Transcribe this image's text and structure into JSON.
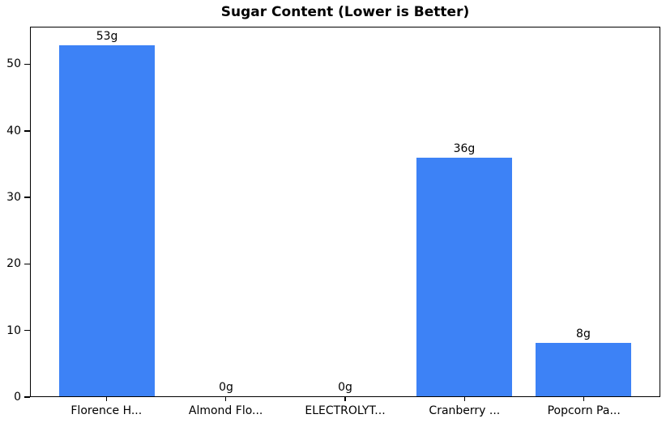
{
  "chart_data": {
    "type": "bar",
    "title": "Sugar Content (Lower is Better)",
    "categories": [
      "Florence H...",
      "Almond Flo...",
      "ELECTROLYT...",
      "Cranberry ...",
      "Popcorn Pa..."
    ],
    "values": [
      53,
      0,
      0,
      36,
      8
    ],
    "bar_labels": [
      "53g",
      "0g",
      "0g",
      "36g",
      "8g"
    ],
    "yticks": [
      0,
      10,
      20,
      30,
      40,
      50
    ],
    "ylim": [
      0,
      55.65
    ],
    "xlim": [
      -0.64,
      4.64
    ],
    "bar_width": 0.8,
    "bar_color": "#3d82f6",
    "axis_color": "#000000",
    "background_color": "#ffffff",
    "xlabel": "",
    "ylabel": "",
    "grid": false,
    "legend": null
  }
}
